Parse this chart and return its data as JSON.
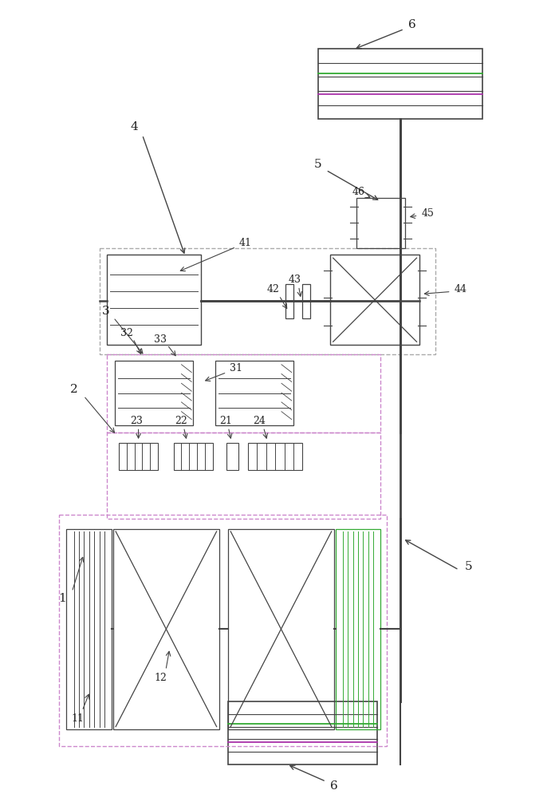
{
  "bg_color": "#ffffff",
  "line_color": "#444444",
  "figsize": [
    7.01,
    10.0
  ]
}
